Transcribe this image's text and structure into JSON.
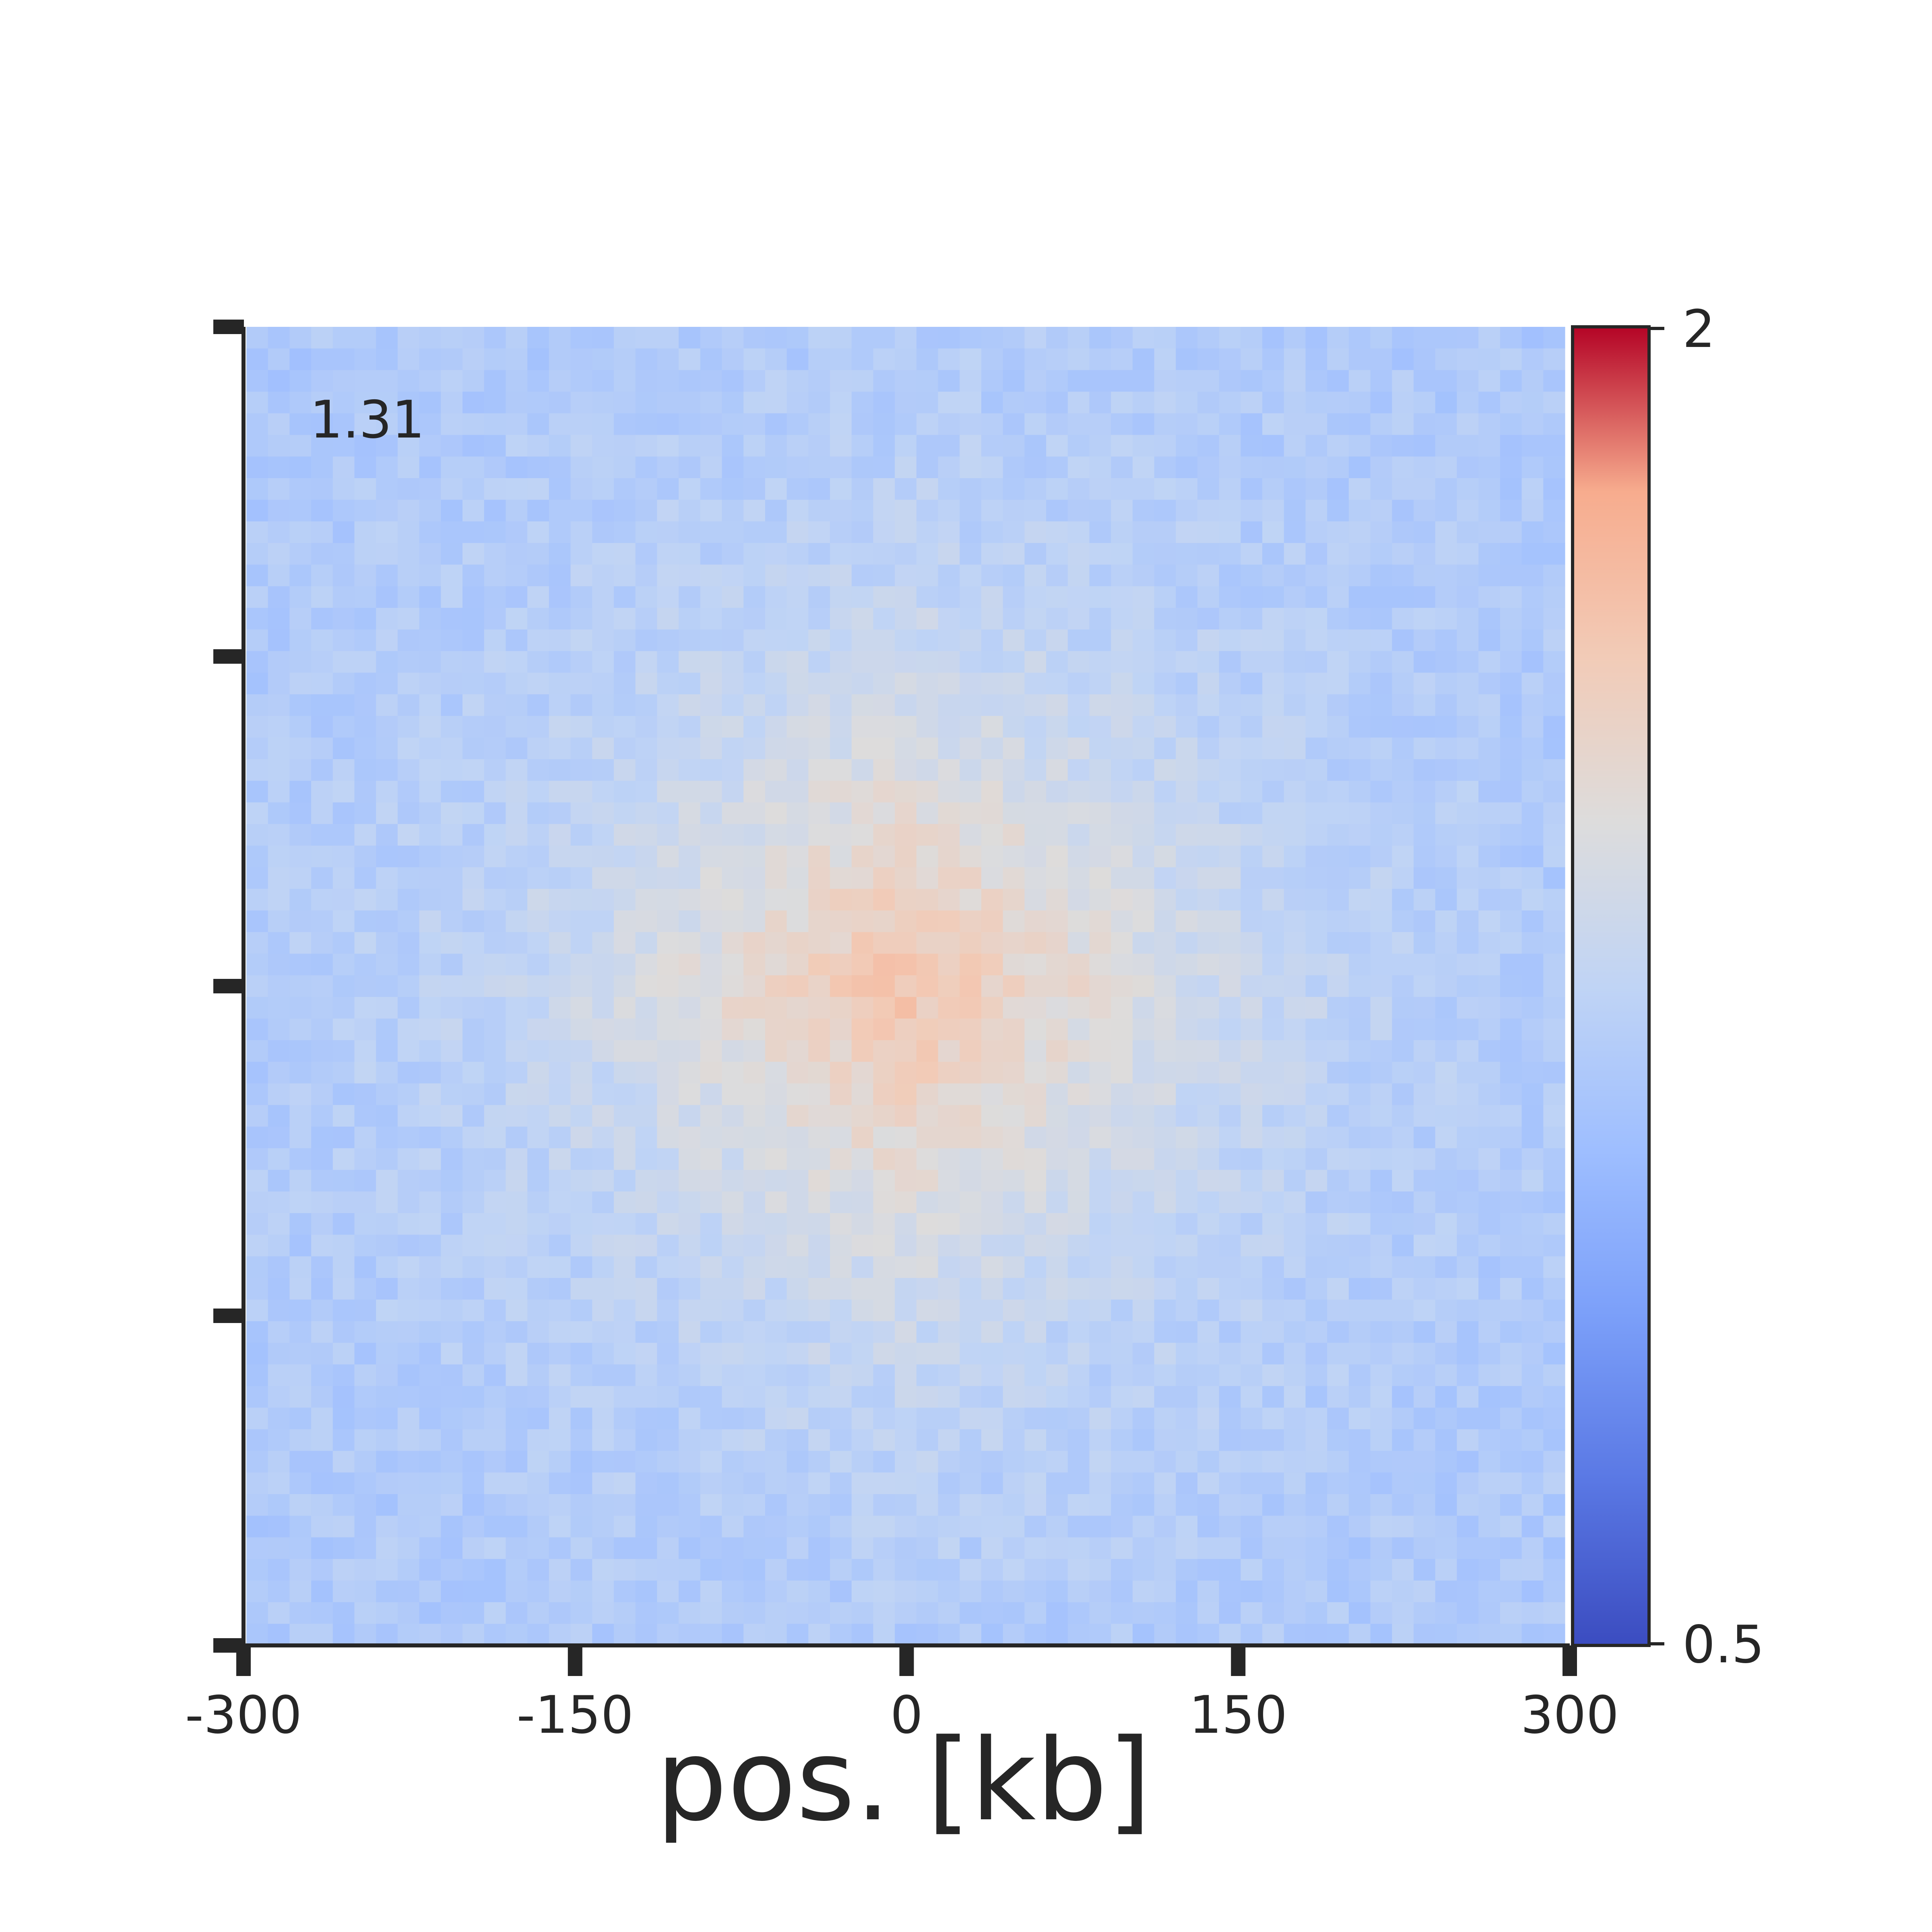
{
  "chart_data": {
    "type": "heatmap",
    "title": "",
    "xlabel": "pos. [kb]",
    "ylabel": "",
    "x_ticks": [
      "-300",
      "-150",
      "0",
      "150",
      "300"
    ],
    "xlim": [
      -300,
      300
    ],
    "ylim": [
      -300,
      300
    ],
    "grid": false,
    "annotation": "1.31",
    "grid_size": 61,
    "center_value": 1.55,
    "background_value": 1.22,
    "pattern": "central enrichment peak with cross-shaped stripes along the middle row and column, fading to ~1.2 toward the edges and corners",
    "colorbar": {
      "colormap": "coolwarm",
      "min": 0.5,
      "max": 2,
      "tick_labels": [
        "2",
        "0.5"
      ]
    },
    "colors": {
      "axis": "#262626",
      "cmap_low": "#3b4cc0",
      "cmap_mid": "#dddcdc",
      "cmap_high": "#b40426"
    }
  }
}
